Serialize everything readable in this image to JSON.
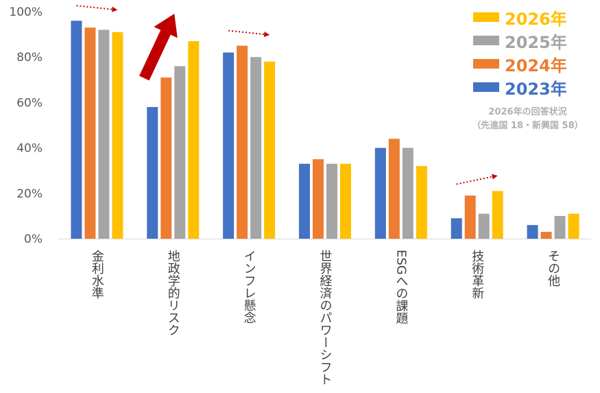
{
  "chart_data": {
    "type": "bar",
    "categories": [
      "金利水準",
      "地政学的リスク",
      "インフレ懸念",
      "世界経済のパワーシフト",
      "ESGへの課題",
      "技術革新",
      "その他"
    ],
    "series": [
      {
        "name": "2023年",
        "color": "#4472c4",
        "values": [
          96,
          58,
          82,
          33,
          40,
          9,
          6
        ]
      },
      {
        "name": "2024年",
        "color": "#ed7d31",
        "values": [
          93,
          71,
          85,
          35,
          44,
          19,
          3
        ]
      },
      {
        "name": "2025年",
        "color": "#a5a5a5",
        "values": [
          92,
          76,
          80,
          33,
          40,
          11,
          10
        ]
      },
      {
        "name": "2026年",
        "color": "#ffc000",
        "values": [
          91,
          87,
          78,
          33,
          32,
          21,
          11
        ]
      }
    ],
    "ylim": [
      0,
      100
    ],
    "yticks": [
      "0%",
      "20%",
      "40%",
      "60%",
      "80%",
      "100%"
    ],
    "legend_order": [
      3,
      2,
      1,
      0
    ],
    "legend_position": "top-right",
    "grid": false,
    "annotations": [
      {
        "type": "dotted-arrow",
        "category": "金利水準",
        "direction": "down-right",
        "color": "#c00000"
      },
      {
        "type": "thick-arrow",
        "category": "地政学的リスク",
        "direction": "up-right",
        "color": "#c00000"
      },
      {
        "type": "dotted-arrow",
        "category": "インフレ懸念",
        "direction": "down-right",
        "color": "#c00000"
      },
      {
        "type": "dotted-arrow",
        "category": "技術革新",
        "direction": "up-right",
        "color": "#c00000"
      }
    ]
  },
  "note": {
    "line1": "2026年の回答状況",
    "line2": "（先進国 18・新興国 58）"
  }
}
